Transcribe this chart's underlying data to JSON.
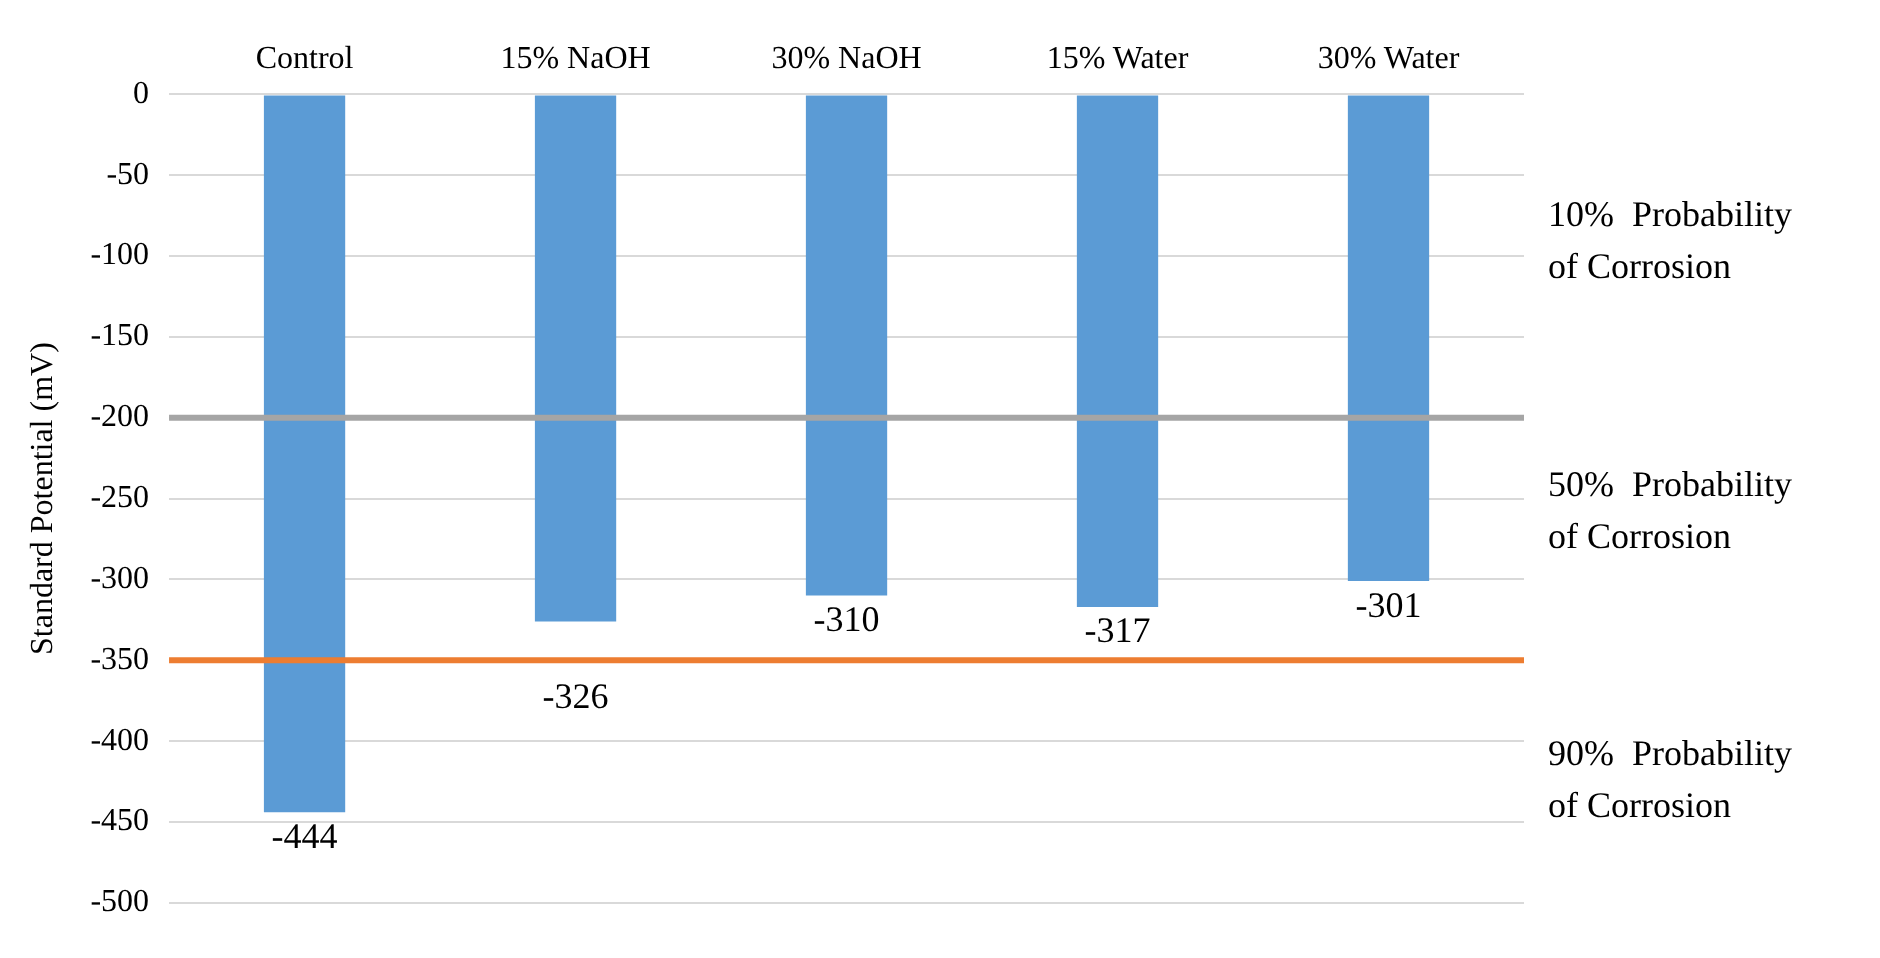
{
  "chart_data": {
    "type": "bar",
    "ylabel": "Standard Potential (mV)",
    "categories": [
      "Control",
      "15% NaOH",
      "30% NaOH",
      "15% Water",
      "30% Water"
    ],
    "values": [
      -444,
      -326,
      -310,
      -317,
      -301
    ],
    "color": "#5b9bd5",
    "data_labels": true,
    "ylim": [
      -500,
      0
    ],
    "yticks": [
      -500,
      -450,
      -400,
      -350,
      -300,
      -250,
      -200,
      -150,
      -100,
      -50,
      0
    ],
    "grid": "y",
    "legend": false,
    "ref_lines": [
      {
        "axis": "y",
        "value": -200,
        "color": "#a5a5a5"
      },
      {
        "axis": "y",
        "value": -350,
        "color": "#ed7d31"
      }
    ],
    "annotations": [
      "10%  Probability of Corrosion",
      "50%  Probability of Corrosion",
      "90%  Probability of Corrosion"
    ]
  }
}
